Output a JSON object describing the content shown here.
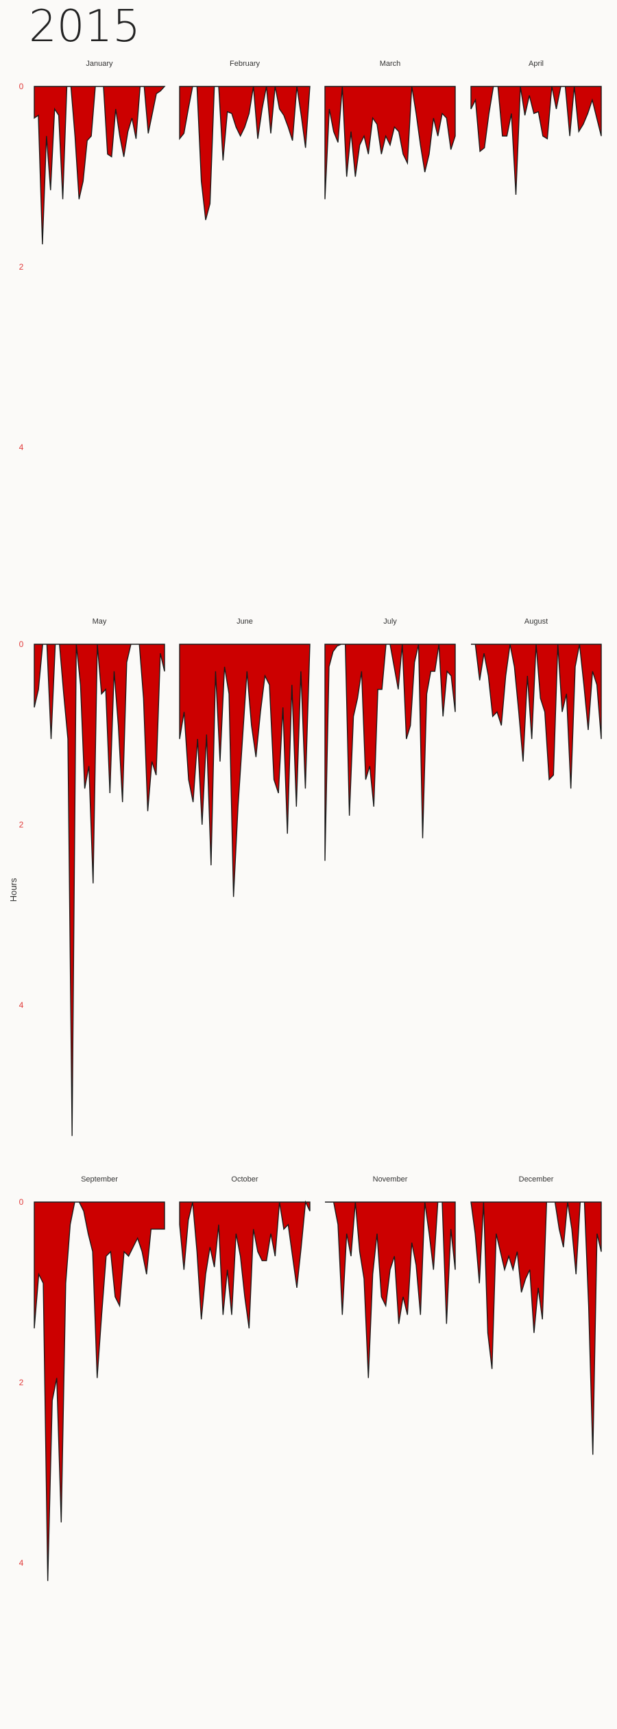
{
  "chart_data": {
    "type": "area",
    "title": "2015",
    "ylabel": "Hours",
    "ylim": [
      0,
      5.6
    ],
    "yticks": [
      0,
      2,
      4
    ],
    "fill_color": "#cc0000",
    "stroke_color": "#1a1a1a",
    "tick_color": "#e03a3a",
    "months": [
      {
        "name": "January",
        "values": [
          0.35,
          0.32,
          1.75,
          0.55,
          1.15,
          0.25,
          0.32,
          1.25,
          0,
          0,
          0.55,
          1.25,
          1.05,
          0.6,
          0.55,
          0,
          0,
          0,
          0.75,
          0.78,
          0.25,
          0.55,
          0.78,
          0.5,
          0.35,
          0.58,
          0,
          0,
          0.52,
          0.3,
          0.08,
          0.05,
          0
        ]
      },
      {
        "name": "February",
        "values": [
          0.58,
          0.52,
          0.25,
          0,
          0,
          1.05,
          1.48,
          1.3,
          0,
          0,
          0.82,
          0.28,
          0.3,
          0.45,
          0.55,
          0.45,
          0.3,
          0,
          0.58,
          0.25,
          0,
          0.52,
          0,
          0.25,
          0.32,
          0.45,
          0.6,
          0,
          0.32,
          0.68,
          0
        ]
      },
      {
        "name": "March",
        "values": [
          1.25,
          0.25,
          0.5,
          0.62,
          0,
          1,
          0.5,
          1,
          0.65,
          0.55,
          0.75,
          0.35,
          0.42,
          0.75,
          0.55,
          0.65,
          0.45,
          0.5,
          0.75,
          0.85,
          0,
          0.3,
          0.65,
          0.95,
          0.75,
          0.35,
          0.55,
          0.3,
          0.35,
          0.7,
          0.55
        ]
      },
      {
        "name": "April",
        "values": [
          0.25,
          0.15,
          0.72,
          0.68,
          0.3,
          0,
          0,
          0.55,
          0.55,
          0.3,
          1.2,
          0,
          0.32,
          0.1,
          0.3,
          0.28,
          0.55,
          0.58,
          0,
          0.25,
          0,
          0,
          0.55,
          0,
          0.5,
          0.42,
          0.3,
          0.15,
          0.35,
          0.55
        ]
      },
      {
        "name": "May",
        "values": [
          0.7,
          0.5,
          0,
          0,
          1.05,
          0,
          0,
          0.55,
          1.05,
          5.45,
          0,
          0.45,
          1.6,
          1.35,
          2.65,
          0,
          0.55,
          0.5,
          1.65,
          0.3,
          0.9,
          1.75,
          0.2,
          0,
          0,
          0,
          0.6,
          1.85,
          1.3,
          1.45,
          0.1,
          0.3
        ]
      },
      {
        "name": "June",
        "values": [
          1.05,
          0.75,
          1.5,
          1.75,
          1.05,
          2,
          1,
          2.45,
          0.3,
          1.3,
          0.25,
          0.55,
          2.8,
          1.8,
          1.05,
          0.3,
          0.9,
          1.25,
          0.75,
          0.35,
          0.45,
          1.5,
          1.65,
          0.7,
          2.1,
          0.45,
          1.8,
          0.3,
          1.6,
          0
        ]
      },
      {
        "name": "July",
        "values": [
          2.4,
          0.25,
          0.08,
          0.02,
          0,
          0,
          1.9,
          0.8,
          0.6,
          0.3,
          1.5,
          1.35,
          1.8,
          0.5,
          0.5,
          0,
          0,
          0.25,
          0.5,
          0,
          1.05,
          0.9,
          0.2,
          0,
          2.15,
          0.55,
          0.3,
          0.3,
          0,
          0.8,
          0.3,
          0.35,
          0.75
        ]
      },
      {
        "name": "August",
        "values": [
          0,
          0,
          0.4,
          0.1,
          0.35,
          0.8,
          0.75,
          0.9,
          0.35,
          0,
          0.25,
          0.75,
          1.3,
          0.35,
          1.05,
          0,
          0.6,
          0.75,
          1.5,
          1.45,
          0,
          0.75,
          0.55,
          1.6,
          0.25,
          0,
          0.45,
          0.95,
          0.3,
          0.45,
          1.05
        ]
      },
      {
        "name": "September",
        "values": [
          1.4,
          0.8,
          0.9,
          4.2,
          2.2,
          1.95,
          3.55,
          0.9,
          0.25,
          0,
          0,
          0.1,
          0.35,
          0.55,
          1.95,
          1.25,
          0.6,
          0.55,
          1.05,
          1.15,
          0.55,
          0.6,
          0.5,
          0.4,
          0.55,
          0.8,
          0.3,
          0.3,
          0.3,
          0.3
        ]
      },
      {
        "name": "October",
        "values": [
          0.25,
          0.75,
          0.2,
          0,
          0.55,
          1.3,
          0.8,
          0.5,
          0.72,
          0.25,
          1.25,
          0.75,
          1.25,
          0.35,
          0.6,
          1.05,
          1.4,
          0.3,
          0.55,
          0.65,
          0.65,
          0.35,
          0.6,
          0,
          0.3,
          0.25,
          0.6,
          0.95,
          0.5,
          0,
          0.1
        ]
      },
      {
        "name": "November",
        "values": [
          0,
          0,
          0,
          0.25,
          1.25,
          0.35,
          0.6,
          0,
          0.55,
          0.85,
          1.95,
          0.8,
          0.35,
          1.05,
          1.15,
          0.75,
          0.6,
          1.35,
          1.05,
          1.25,
          0.45,
          0.7,
          1.25,
          0,
          0.35,
          0.75,
          0,
          0,
          1.35,
          0.3,
          0.75
        ]
      },
      {
        "name": "December",
        "values": [
          0,
          0.35,
          0.9,
          0,
          1.45,
          1.85,
          0.35,
          0.55,
          0.75,
          0.6,
          0.75,
          0.55,
          1,
          0.85,
          0.75,
          1.45,
          0.95,
          1.3,
          0,
          0,
          0,
          0.3,
          0.5,
          0,
          0.3,
          0.8,
          0,
          0,
          1.15,
          2.8,
          0.35,
          0.55
        ]
      }
    ]
  }
}
